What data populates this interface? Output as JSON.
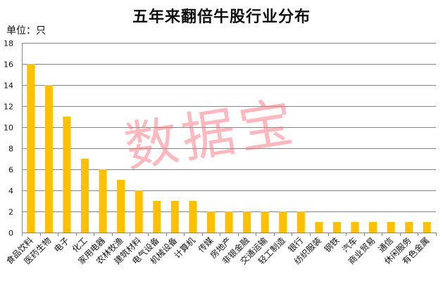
{
  "header": {
    "title": "五年来翻倍牛股行业分布",
    "unit_label": "单位：只"
  },
  "watermark": "数据宝",
  "colors": {
    "bar": "#FFC000",
    "grid": "#868686",
    "axis": "#868686",
    "watermark": "#FF6470"
  },
  "chart_data": {
    "type": "bar",
    "title": "五年来翻倍牛股行业分布",
    "xlabel": "",
    "ylabel": "单位：只",
    "ylim": [
      0,
      18
    ],
    "yticks": [
      0,
      2,
      4,
      6,
      8,
      10,
      12,
      14,
      16,
      18
    ],
    "grid": true,
    "legend": null,
    "categories": [
      "食品饮料",
      "医药生物",
      "电子",
      "化工",
      "家用电器",
      "农林牧渔",
      "建筑材料",
      "电气设备",
      "机械设备",
      "计算机",
      "传媒",
      "房地产",
      "非银金融",
      "交通运输",
      "轻工制造",
      "银行",
      "纺织服装",
      "钢铁",
      "汽车",
      "商业贸易",
      "通信",
      "休闲服务",
      "有色金属"
    ],
    "values": [
      16,
      14,
      11,
      7,
      6,
      5,
      4,
      3,
      3,
      3,
      2,
      2,
      2,
      2,
      2,
      2,
      1,
      1,
      1,
      1,
      1,
      1,
      1
    ]
  }
}
